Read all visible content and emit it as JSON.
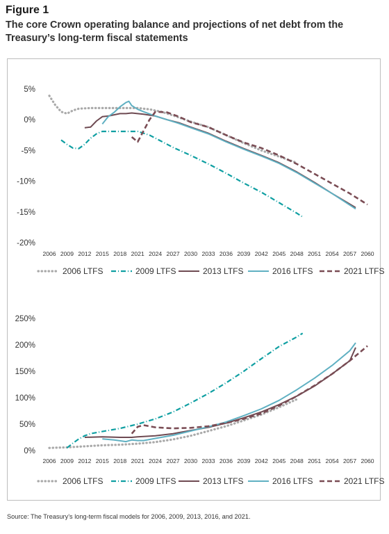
{
  "figure": {
    "label": "Figure 1",
    "title": "The core Crown operating balance and projections of net debt from the Treasury’s long-term fiscal statements",
    "source": "Source: The Treasury’s long-term fiscal models for 2006, 2009, 2013, 2016, and 2021."
  },
  "series_styles": [
    {
      "name": "2006 LTFS",
      "color": "#aaaaaa",
      "dash": "dot"
    },
    {
      "name": "2009 LTFS",
      "color": "#0f9fa2",
      "dash": "dashdot"
    },
    {
      "name": "2013 LTFS",
      "color": "#6e4a52",
      "dash": "solid"
    },
    {
      "name": "2016 LTFS",
      "color": "#5fb0c2",
      "dash": "solid"
    },
    {
      "name": "2021 LTFS",
      "color": "#7a4c54",
      "dash": "dash"
    }
  ],
  "chart_data": [
    {
      "type": "line",
      "xlim": [
        2006,
        2060
      ],
      "ylim": [
        -20,
        5
      ],
      "x_ticks": [
        "2006",
        "2009",
        "2012",
        "2015",
        "2018",
        "2021",
        "2024",
        "2027",
        "2030",
        "2033",
        "2036",
        "2039",
        "2042",
        "2045",
        "2048",
        "2051",
        "2054",
        "2057",
        "2060"
      ],
      "y_ticks": [
        "5%",
        "0%",
        "-5%",
        "-10%",
        "-15%",
        "-20%"
      ],
      "grid": false,
      "legend": "bottom",
      "series": [
        {
          "name": "2006 LTFS",
          "x": [
            2006,
            2007,
            2008,
            2009,
            2010,
            2011,
            2013,
            2015,
            2017,
            2019,
            2021,
            2023,
            2025,
            2027,
            2030,
            2033,
            2036,
            2039,
            2042,
            2045,
            2048
          ],
          "y": [
            3.9,
            2.4,
            1.3,
            1.0,
            1.5,
            1.8,
            1.9,
            1.9,
            1.9,
            1.9,
            1.9,
            1.7,
            1.3,
            0.7,
            -0.3,
            -1.2,
            -2.5,
            -3.8,
            -5.0,
            -6.0,
            -7.0
          ]
        },
        {
          "name": "2009 LTFS",
          "x": [
            2008,
            2009,
            2010,
            2011,
            2012,
            2013,
            2014,
            2015,
            2017,
            2019,
            2021,
            2023,
            2025,
            2027,
            2030,
            2033,
            2036,
            2039,
            2042,
            2045,
            2048,
            2049
          ],
          "y": [
            -3.3,
            -4.0,
            -4.6,
            -4.7,
            -4.0,
            -3.0,
            -2.3,
            -1.9,
            -1.9,
            -1.9,
            -1.9,
            -2.5,
            -3.5,
            -4.5,
            -5.8,
            -7.2,
            -8.7,
            -10.3,
            -11.8,
            -13.5,
            -15.2,
            -15.8
          ]
        },
        {
          "name": "2013 LTFS",
          "x": [
            2012,
            2013,
            2014,
            2015,
            2016,
            2017,
            2018,
            2019,
            2020,
            2021,
            2022,
            2024,
            2026,
            2028,
            2030,
            2033,
            2036,
            2039,
            2042,
            2045,
            2048,
            2051,
            2054,
            2058
          ],
          "y": [
            -1.3,
            -1.2,
            -0.2,
            0.5,
            0.6,
            0.8,
            1.0,
            1.0,
            1.1,
            1.0,
            0.9,
            0.6,
            0.0,
            -0.5,
            -1.2,
            -2.2,
            -3.5,
            -4.7,
            -5.8,
            -7.0,
            -8.5,
            -10.2,
            -12.0,
            -14.3
          ]
        },
        {
          "name": "2016 LTFS",
          "x": [
            2015,
            2016,
            2017,
            2018,
            2019,
            2019.5,
            2020,
            2021,
            2022,
            2024,
            2026,
            2028,
            2030,
            2033,
            2036,
            2039,
            2042,
            2045,
            2048,
            2051,
            2054,
            2058
          ],
          "y": [
            -0.7,
            0.5,
            1.2,
            2.1,
            2.8,
            3.0,
            2.3,
            1.7,
            1.3,
            0.6,
            0.0,
            -0.6,
            -1.3,
            -2.3,
            -3.6,
            -4.8,
            -5.9,
            -7.1,
            -8.6,
            -10.3,
            -12.0,
            -14.5
          ]
        },
        {
          "name": "2021 LTFS",
          "x": [
            2020,
            2021,
            2022,
            2023,
            2024,
            2026,
            2028,
            2030,
            2033,
            2036,
            2039,
            2042,
            2045,
            2048,
            2051,
            2054,
            2057,
            2060
          ],
          "y": [
            -2.8,
            -3.6,
            -1.8,
            0.0,
            1.3,
            1.2,
            0.5,
            -0.4,
            -1.2,
            -2.5,
            -3.7,
            -4.6,
            -5.8,
            -7.2,
            -8.8,
            -10.4,
            -12.0,
            -13.8
          ]
        }
      ]
    },
    {
      "type": "line",
      "xlim": [
        2006,
        2060
      ],
      "ylim": [
        0,
        250
      ],
      "x_ticks": [
        "2006",
        "2009",
        "2012",
        "2015",
        "2018",
        "2021",
        "2024",
        "2027",
        "2030",
        "2033",
        "2036",
        "2039",
        "2042",
        "2045",
        "2048",
        "2051",
        "2054",
        "2057",
        "2060"
      ],
      "y_ticks": [
        "250%",
        "200%",
        "150%",
        "100%",
        "50%",
        "0%"
      ],
      "grid": false,
      "legend": "bottom",
      "series": [
        {
          "name": "2006 LTFS",
          "x": [
            2006,
            2009,
            2012,
            2015,
            2018,
            2021,
            2024,
            2027,
            2030,
            2033,
            2036,
            2039,
            2042,
            2045,
            2048
          ],
          "y": [
            5,
            6,
            8,
            10,
            11,
            13,
            16,
            21,
            28,
            37,
            46,
            57,
            68,
            82,
            97
          ]
        },
        {
          "name": "2009 LTFS",
          "x": [
            2009,
            2010,
            2011,
            2012,
            2013,
            2015,
            2018,
            2021,
            2024,
            2027,
            2030,
            2033,
            2036,
            2039,
            2042,
            2045,
            2048,
            2049
          ],
          "y": [
            5,
            14,
            22,
            28,
            32,
            36,
            42,
            50,
            60,
            73,
            90,
            108,
            128,
            150,
            174,
            197,
            215,
            222
          ]
        },
        {
          "name": "2013 LTFS",
          "x": [
            2012,
            2015,
            2018,
            2020,
            2021,
            2024,
            2027,
            2030,
            2033,
            2036,
            2039,
            2042,
            2045,
            2048,
            2051,
            2054,
            2057,
            2058
          ],
          "y": [
            25,
            26,
            25,
            25,
            26,
            28,
            32,
            38,
            44,
            52,
            62,
            73,
            87,
            103,
            122,
            145,
            170,
            195
          ]
        },
        {
          "name": "2016 LTFS",
          "x": [
            2015,
            2017,
            2019,
            2020,
            2021,
            2022,
            2024,
            2027,
            2030,
            2033,
            2036,
            2039,
            2042,
            2045,
            2048,
            2051,
            2054,
            2057,
            2058
          ],
          "y": [
            22,
            20,
            17,
            20,
            19,
            19,
            23,
            29,
            37,
            45,
            54,
            66,
            79,
            95,
            115,
            137,
            161,
            189,
            204
          ]
        },
        {
          "name": "2021 LTFS",
          "x": [
            2020,
            2021,
            2022,
            2024,
            2027,
            2030,
            2033,
            2036,
            2039,
            2042,
            2045,
            2048,
            2051,
            2054,
            2057,
            2060
          ],
          "y": [
            32,
            45,
            48,
            44,
            42,
            43,
            46,
            52,
            60,
            70,
            85,
            103,
            123,
            145,
            170,
            198
          ]
        }
      ]
    }
  ]
}
